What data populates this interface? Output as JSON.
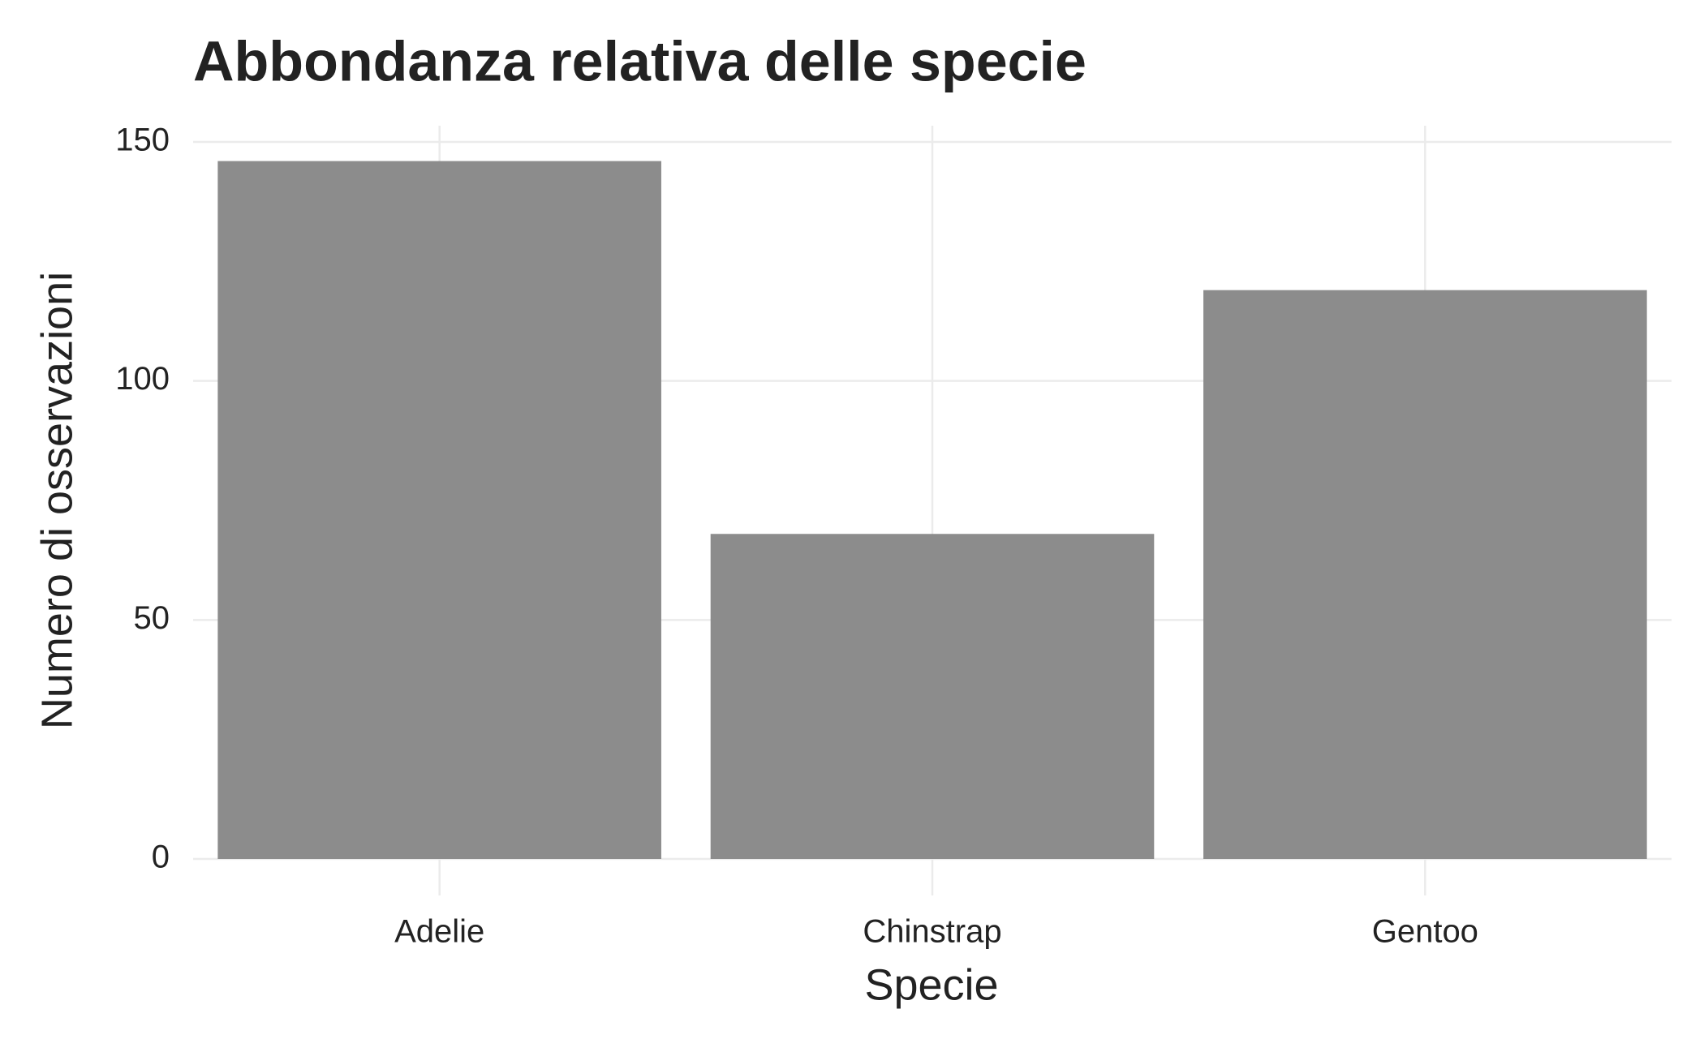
{
  "chart_data": {
    "type": "bar",
    "title": "Abbondanza relativa delle specie",
    "x_label": "Specie",
    "y_label": "Numero di osservazioni",
    "categories": [
      "Adelie",
      "Chinstrap",
      "Gentoo"
    ],
    "values": [
      146,
      68,
      119
    ],
    "color": "#8c8c8c",
    "ylim": [
      0,
      150
    ],
    "yticks": [
      0,
      50,
      100,
      150
    ],
    "grid": true
  }
}
